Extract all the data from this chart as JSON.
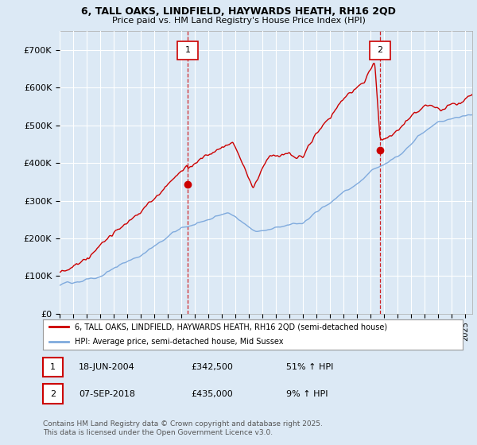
{
  "title_line1": "6, TALL OAKS, LINDFIELD, HAYWARDS HEATH, RH16 2QD",
  "title_line2": "Price paid vs. HM Land Registry's House Price Index (HPI)",
  "ylim": [
    0,
    750000
  ],
  "yticks": [
    0,
    100000,
    200000,
    300000,
    400000,
    500000,
    600000,
    700000
  ],
  "ytick_labels": [
    "£0",
    "£100K",
    "£200K",
    "£300K",
    "£400K",
    "£500K",
    "£600K",
    "£700K"
  ],
  "background_color": "#dce9f5",
  "plot_bg_color": "#dce9f5",
  "highlight_bg": "#dce9f5",
  "grid_color": "#ffffff",
  "red_color": "#cc0000",
  "blue_color": "#7faadd",
  "marker1_x": 2004.46,
  "marker1_y": 342500,
  "marker2_x": 2018.68,
  "marker2_y": 435000,
  "legend_line1": "6, TALL OAKS, LINDFIELD, HAYWARDS HEATH, RH16 2QD (semi-detached house)",
  "legend_line2": "HPI: Average price, semi-detached house, Mid Sussex",
  "marker1_date": "18-JUN-2004",
  "marker1_price": "£342,500",
  "marker1_hpi": "51% ↑ HPI",
  "marker2_date": "07-SEP-2018",
  "marker2_price": "£435,000",
  "marker2_hpi": "9% ↑ HPI",
  "footnote": "Contains HM Land Registry data © Crown copyright and database right 2025.\nThis data is licensed under the Open Government Licence v3.0.",
  "xmin": 1995.0,
  "xmax": 2025.5
}
